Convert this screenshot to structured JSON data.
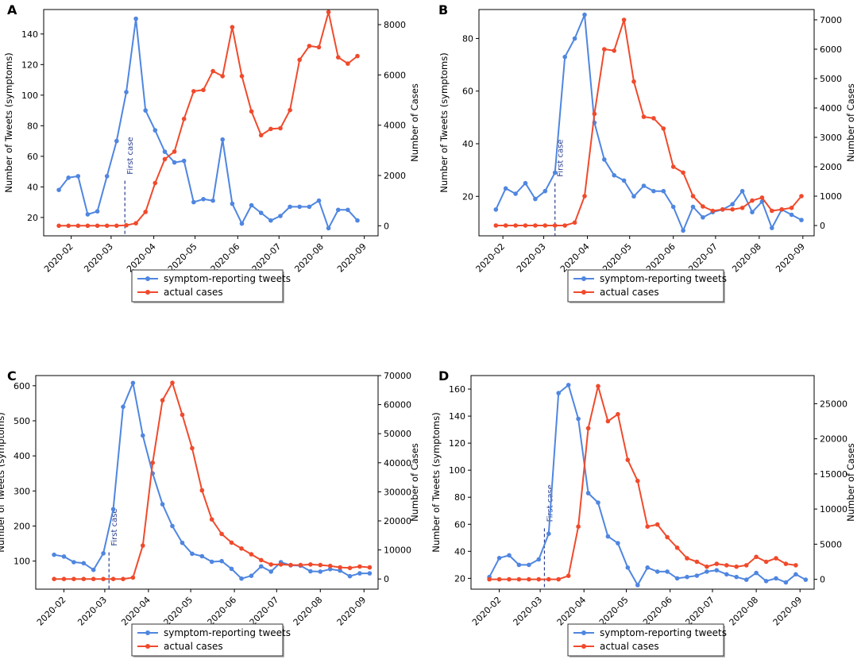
{
  "figure": {
    "colors": {
      "tweets": "#4f86e0",
      "cases": "#f04a2c",
      "annotation": "#2a3f8f",
      "axis": "#000000"
    },
    "x_tick_labels": [
      "2020-02",
      "2020-03",
      "2020-04",
      "2020-05",
      "2020-06",
      "2020-07",
      "2020-08",
      "2020-09"
    ]
  },
  "chart_data": [
    {
      "type": "line",
      "panel": "A",
      "x_start": "2020-01-23",
      "x_step_days": 7,
      "xlim": [
        "2020-01-12",
        "2020-09-11"
      ],
      "ylabel_left": "Number of Tweets (symptoms)",
      "ylabel_right": "Number of Cases",
      "ylim_left": [
        8,
        156
      ],
      "yticks_left": [
        20,
        40,
        60,
        80,
        100,
        120,
        140
      ],
      "ylim_right": [
        -400,
        8600
      ],
      "yticks_right": [
        0,
        2000,
        4000,
        6000,
        8000
      ],
      "annotation": {
        "label": "First case",
        "date": "2020-03-11",
        "y_top": 44
      },
      "legend": [
        "symptom-reporting tweets",
        "actual cases"
      ],
      "series": [
        {
          "name": "symptom-reporting tweets",
          "axis": "left",
          "values": [
            38,
            46,
            47,
            22,
            24,
            47,
            70,
            102,
            150,
            90,
            77,
            63,
            56,
            57,
            30,
            32,
            31,
            71,
            29,
            16,
            28,
            23,
            18,
            21,
            27,
            27,
            27,
            31,
            13,
            25,
            25,
            18
          ]
        },
        {
          "name": "actual cases",
          "axis": "right",
          "values": [
            0,
            0,
            0,
            0,
            0,
            0,
            0,
            20,
            100,
            550,
            1700,
            2650,
            2950,
            4250,
            5350,
            5400,
            6150,
            5950,
            7900,
            5950,
            4550,
            3600,
            3850,
            3880,
            4600,
            6600,
            7150,
            7100,
            8500,
            6700,
            6450,
            6750
          ]
        }
      ]
    },
    {
      "type": "line",
      "panel": "B",
      "x_start": "2020-01-27",
      "x_step_days": 7,
      "xlim": [
        "2020-01-15",
        "2020-09-09"
      ],
      "ylabel_left": "Number of Tweets (symptoms)",
      "ylabel_right": "Number of Cases",
      "ylim_left": [
        5,
        91
      ],
      "yticks_left": [
        20,
        40,
        60,
        80
      ],
      "ylim_right": [
        -350,
        7350
      ],
      "yticks_right": [
        0,
        1000,
        2000,
        3000,
        4000,
        5000,
        6000,
        7000
      ],
      "annotation": {
        "label": "First case",
        "date": "2020-03-09",
        "y_top": 25
      },
      "legend": [
        "symptom-reporting tweets",
        "actual cases"
      ],
      "series": [
        {
          "name": "symptom-reporting tweets",
          "axis": "left",
          "values": [
            15,
            23,
            21,
            25,
            19,
            22,
            29,
            73,
            80,
            89,
            48,
            34,
            28,
            26,
            20,
            24,
            22,
            22,
            16,
            7,
            16,
            12,
            14,
            15,
            17,
            22,
            14,
            18,
            8,
            15,
            13,
            11
          ]
        },
        {
          "name": "actual cases",
          "axis": "right",
          "values": [
            0,
            0,
            0,
            0,
            0,
            0,
            0,
            0,
            100,
            1000,
            3800,
            6000,
            5950,
            7000,
            4900,
            3700,
            3650,
            3300,
            2000,
            1800,
            1000,
            650,
            500,
            550,
            550,
            600,
            850,
            950,
            500,
            550,
            600,
            1000
          ]
        }
      ]
    },
    {
      "type": "line",
      "panel": "C",
      "x_start": "2020-01-25",
      "x_step_days": 7,
      "xlim": [
        "2020-01-12",
        "2020-09-11"
      ],
      "ylabel_left": "Number of Tweets (symptoms)",
      "ylabel_right": "Number of Cases",
      "ylim_left": [
        20,
        629
      ],
      "yticks_left": [
        100,
        200,
        300,
        400,
        500,
        600
      ],
      "ylim_right": [
        -3500,
        70000
      ],
      "yticks_right": [
        0,
        10000,
        20000,
        30000,
        40000,
        50000,
        60000,
        70000
      ],
      "annotation": {
        "label": "First case",
        "date": "2020-03-04",
        "y_top": 125
      },
      "legend": [
        "symptom-reporting tweets",
        "actual cases"
      ],
      "series": [
        {
          "name": "symptom-reporting tweets",
          "axis": "left",
          "values": [
            118,
            113,
            97,
            94,
            75,
            122,
            248,
            540,
            608,
            458,
            350,
            262,
            200,
            152,
            121,
            114,
            98,
            100,
            78,
            50,
            58,
            85,
            70,
            97,
            88,
            87,
            71,
            70,
            77,
            73,
            57,
            65,
            65
          ]
        },
        {
          "name": "actual cases",
          "axis": "right",
          "values": [
            0,
            0,
            0,
            0,
            0,
            0,
            0,
            0,
            500,
            11500,
            40000,
            61500,
            67500,
            56500,
            45000,
            30500,
            20500,
            15500,
            12500,
            10500,
            8500,
            6500,
            5000,
            5000,
            4800,
            4800,
            5000,
            4800,
            4500,
            4000,
            3800,
            4300,
            4000
          ]
        }
      ]
    },
    {
      "type": "line",
      "panel": "D",
      "x_start": "2020-01-25",
      "x_step_days": 7,
      "xlim": [
        "2020-01-12",
        "2020-09-11"
      ],
      "ylabel_left": "Number of Tweets (symptoms)",
      "ylabel_right": "Number of Cases",
      "ylim_left": [
        12,
        170
      ],
      "yticks_left": [
        20,
        40,
        60,
        80,
        100,
        120,
        140,
        160
      ],
      "ylim_right": [
        -1400,
        29000
      ],
      "yticks_right": [
        0,
        5000,
        10000,
        15000,
        20000,
        25000
      ],
      "annotation": {
        "label": "First case",
        "date": "2020-03-04",
        "y_top": 57
      },
      "legend": [
        "symptom-reporting tweets",
        "actual cases"
      ],
      "series": [
        {
          "name": "symptom-reporting tweets",
          "axis": "left",
          "values": [
            21,
            35,
            37,
            30,
            30,
            34,
            53,
            157,
            163,
            138,
            83,
            76,
            51,
            46,
            28,
            15,
            28,
            25,
            25,
            20,
            21,
            22,
            25,
            26,
            23,
            21,
            19,
            24,
            18,
            20,
            17,
            23,
            19
          ]
        },
        {
          "name": "actual cases",
          "axis": "right",
          "values": [
            0,
            0,
            0,
            0,
            0,
            0,
            0,
            0,
            500,
            7500,
            21500,
            27500,
            22500,
            23500,
            17000,
            14000,
            7500,
            7800,
            6000,
            4500,
            3000,
            2500,
            1800,
            2200,
            2000,
            1800,
            2000,
            3200,
            2500,
            3000,
            2200,
            2000
          ]
        }
      ]
    }
  ]
}
